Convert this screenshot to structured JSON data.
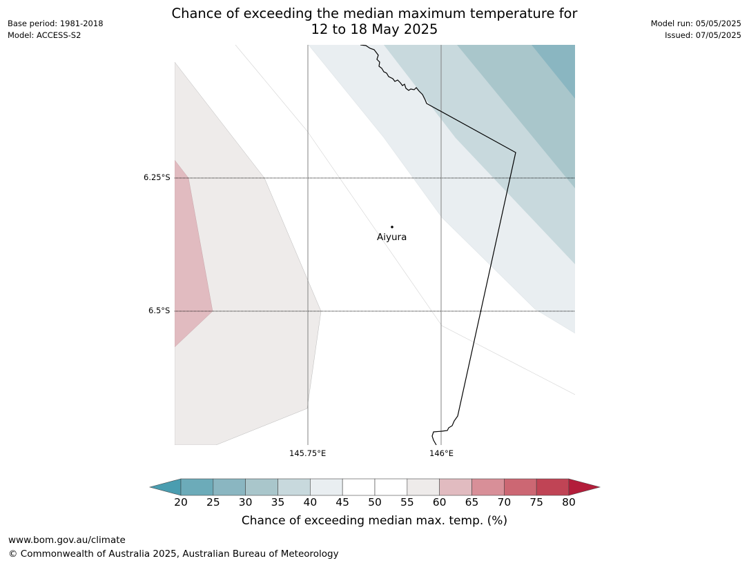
{
  "header": {
    "base_period": "Base period: 1981-2018",
    "model": "Model: ACCESS-S2",
    "model_run": "Model run: 05/05/2025",
    "issued": "Issued: 07/05/2025",
    "title_line1": "Chance of exceeding the median maximum temperature for",
    "title_line2": "12 to 18 May 2025"
  },
  "map": {
    "lat_labels": [
      "6.25°S",
      "6.5°S"
    ],
    "lon_labels": [
      "145.75°E",
      "146°E"
    ],
    "place": {
      "name": "Aiyura",
      "lat": -6.35,
      "lon": 145.9
    },
    "colors": {
      "band_55_60": "#eeebea",
      "band_60_65": "#e1bbc0",
      "band_40_45": "#e9eef1",
      "band_35_40": "#c8d9dd",
      "band_30_35": "#a9c6cb",
      "band_25_30": "#8ab6c1"
    }
  },
  "colorbar": {
    "ticks": [
      "20",
      "25",
      "30",
      "35",
      "40",
      "45",
      "50",
      "55",
      "60",
      "65",
      "70",
      "75",
      "80"
    ],
    "colors": [
      "#6cabb9",
      "#8ab6c1",
      "#a9c6cb",
      "#c8d9dd",
      "#e9eef1",
      "#ffffff",
      "#ffffff",
      "#eeebea",
      "#e1bbc0",
      "#d88f98",
      "#cc6773",
      "#c04455"
    ],
    "extend_low_color": "#4a9db0",
    "extend_high_color": "#b31d3a",
    "label": "Chance of exceeding median max. temp. (%)"
  },
  "footer": {
    "url": "www.bom.gov.au/climate",
    "copyright": "© Commonwealth of Australia 2025, Australian Bureau of Meteorology"
  }
}
